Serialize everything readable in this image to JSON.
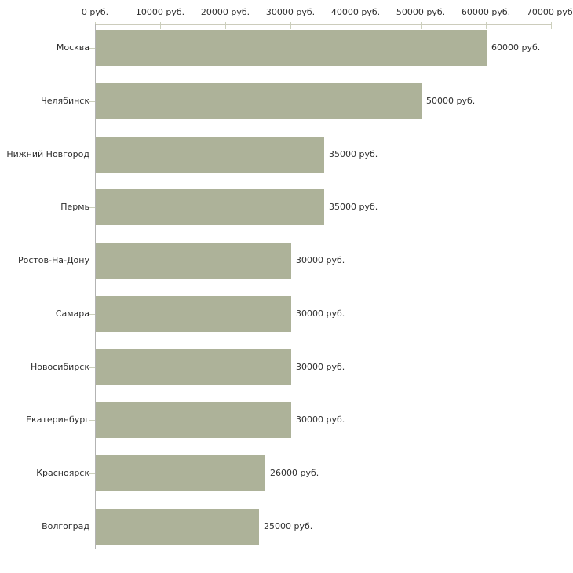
{
  "chart_data": {
    "type": "bar",
    "orientation": "horizontal",
    "title": "",
    "categories": [
      "Москва",
      "Челябинск",
      "Нижний Новгород",
      "Пермь",
      "Ростов-На-Дону",
      "Самара",
      "Новосибирск",
      "Екатеринбург",
      "Красноярск",
      "Волгоград"
    ],
    "values": [
      60000,
      50000,
      35000,
      35000,
      30000,
      30000,
      30000,
      30000,
      26000,
      25000
    ],
    "value_labels": [
      "60000 руб.",
      "50000 руб.",
      "35000 руб.",
      "35000 руб.",
      "30000 руб.",
      "30000 руб.",
      "30000 руб.",
      "30000 руб.",
      "26000 руб.",
      "25000 руб."
    ],
    "x_axis": {
      "min": 0,
      "max": 70000,
      "step": 10000,
      "position": "top",
      "tick_labels": [
        "0 руб.",
        "10000 руб.",
        "20000 руб.",
        "30000 руб.",
        "40000 руб.",
        "50000 руб.",
        "60000 руб.",
        "70000 руб."
      ]
    },
    "unit_suffix": " руб.",
    "grid": false,
    "legend": false,
    "colors": {
      "bar_fill": "#adb299",
      "x_axis_line": "#ccccbc",
      "y_axis_line": "#b3b3b3",
      "tick": "#ccd0bc",
      "text": "#2e2e2e",
      "background": "#ffffff"
    }
  }
}
